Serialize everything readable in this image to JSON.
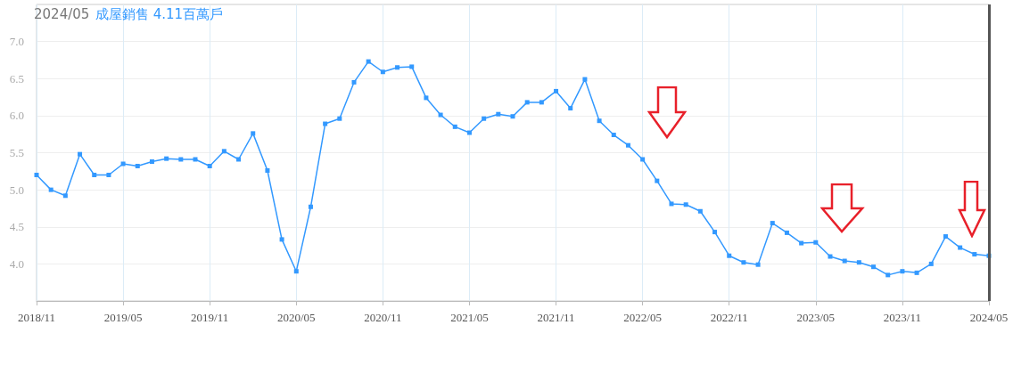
{
  "chart_data": {
    "type": "line",
    "title": "2024/05",
    "subtitle": "成屋銷售 4.11百萬戶",
    "categories": [
      "2018/11",
      null,
      null,
      null,
      null,
      null,
      "2019/05",
      null,
      null,
      null,
      null,
      null,
      "2019/11",
      null,
      null,
      null,
      null,
      null,
      "2020/05",
      null,
      null,
      null,
      null,
      null,
      "2020/11",
      null,
      null,
      null,
      null,
      null,
      "2021/05",
      null,
      null,
      null,
      null,
      null,
      "2021/11",
      null,
      null,
      null,
      null,
      null,
      "2022/05",
      null,
      null,
      null,
      null,
      null,
      "2022/11",
      null,
      null,
      null,
      null,
      null,
      "2023/05",
      null,
      null,
      null,
      null,
      null,
      "2023/11",
      null,
      null,
      null,
      null,
      null,
      "2024/05"
    ],
    "series": [
      {
        "color": "#3399ff",
        "values": [
          5.2,
          5.0,
          4.92,
          5.48,
          5.2,
          5.2,
          5.35,
          5.32,
          5.38,
          5.42,
          5.41,
          5.41,
          5.32,
          5.52,
          5.41,
          5.76,
          5.26,
          4.33,
          3.9,
          4.77,
          5.89,
          5.96,
          6.45,
          6.73,
          6.59,
          6.65,
          6.66,
          6.24,
          6.01,
          5.85,
          5.77,
          5.96,
          6.02,
          5.99,
          6.18,
          6.18,
          6.33,
          6.1,
          6.49,
          5.93,
          5.74,
          5.6,
          5.41,
          5.12,
          4.81,
          4.8,
          4.71,
          4.43,
          4.11,
          4.02,
          3.99,
          4.55,
          4.42,
          4.28,
          4.29,
          4.1,
          4.04,
          4.02,
          3.96,
          3.85,
          3.9,
          3.88,
          4.0,
          4.37,
          4.22,
          4.13,
          4.11
        ]
      }
    ],
    "ylim": [
      3.5,
      7.5
    ],
    "yticks": [
      {
        "value": 4,
        "label": "4.0"
      },
      {
        "value": 4.5,
        "label": "4.5"
      },
      {
        "value": 5,
        "label": "5.0"
      },
      {
        "value": 5.5,
        "label": "5.5"
      },
      {
        "value": 6,
        "label": "6.0"
      },
      {
        "value": 6.5,
        "label": "6.5"
      },
      {
        "value": 7,
        "label": "7.0"
      }
    ],
    "ref_lines": [
      {
        "axis": "x",
        "value": "2024/05",
        "color": "#555555"
      }
    ],
    "grid": true,
    "marker": "square",
    "line_style": "solid"
  }
}
